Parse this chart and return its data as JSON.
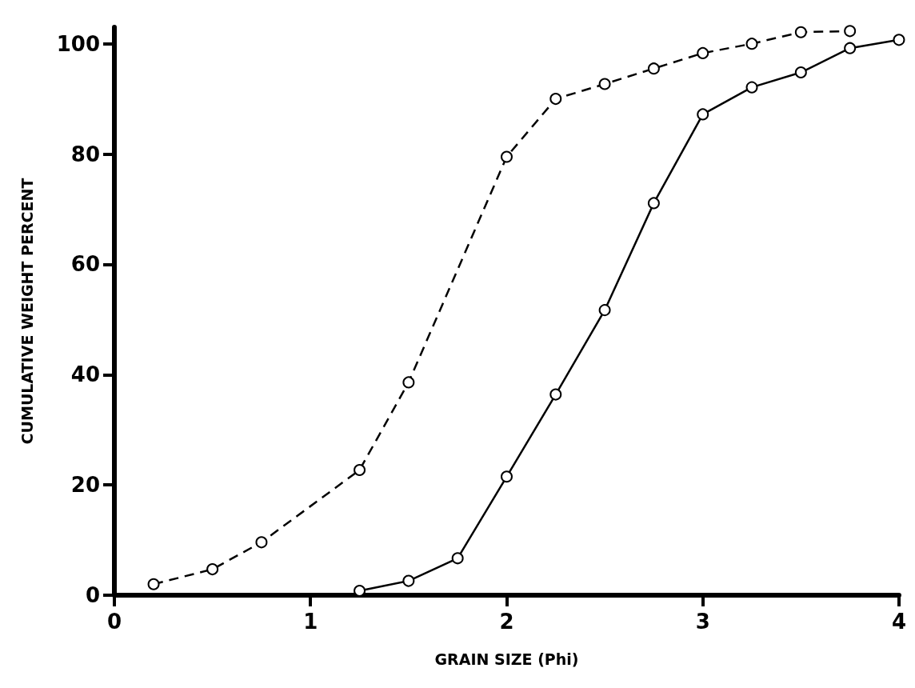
{
  "chart_data": {
    "type": "line",
    "xlabel": "GRAIN SIZE (Phi)",
    "ylabel": "CUMULATIVE WEIGHT PERCENT",
    "xlim": [
      0,
      4
    ],
    "xticks": [
      0,
      1,
      2,
      3,
      4
    ],
    "ylim": [
      0,
      103
    ],
    "yticks": [
      0,
      20,
      40,
      60,
      80,
      100
    ],
    "marker": "circle",
    "series": [
      {
        "color": "#000000",
        "line_style": "dashed",
        "x": [
          0.2,
          0.5,
          0.75,
          1.25,
          1.5,
          2,
          2.25,
          2.5,
          2.75,
          3,
          3.25,
          3.5,
          3.75
        ],
        "values": [
          2,
          4.7,
          9.6,
          22.7,
          38.6,
          79.5,
          90,
          92.7,
          95.5,
          98.3,
          100,
          102.1,
          102.3
        ]
      },
      {
        "color": "#000000",
        "line_style": "solid",
        "x": [
          1.25,
          1.5,
          1.75,
          2,
          2.25,
          2.5,
          2.75,
          3,
          3.25,
          3.5,
          3.75,
          4
        ],
        "values": [
          0.8,
          2.6,
          6.7,
          21.5,
          36.4,
          51.7,
          71.1,
          87.2,
          92.1,
          94.8,
          99.2,
          100.7
        ]
      }
    ]
  }
}
